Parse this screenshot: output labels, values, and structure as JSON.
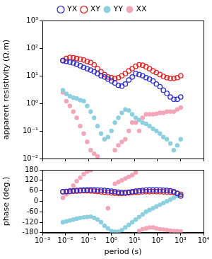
{
  "chart_data": [
    {
      "type": "scatter",
      "y_label": "apparent resistivity (Ω.m)",
      "log": true,
      "grid": false,
      "legend": "top",
      "tick_labels": "y",
      "xlim": [
        0.001,
        10000
      ],
      "xticks": [
        {
          "value": 0.001,
          "label": "10⁻³"
        },
        {
          "value": 0.01,
          "label": "10⁻²"
        },
        {
          "value": 0.1,
          "label": "10⁻¹"
        },
        {
          "value": 1,
          "label": "10⁰"
        },
        {
          "value": 10,
          "label": "10¹"
        },
        {
          "value": 100,
          "label": "10²"
        },
        {
          "value": 1000,
          "label": "10³"
        },
        {
          "value": 10000,
          "label": "10⁴"
        }
      ],
      "ylim": [
        0.01,
        1000
      ],
      "yticks": [
        {
          "value": 0.01,
          "label": "10⁻²"
        },
        {
          "value": 0.1,
          "label": "10⁻¹"
        },
        {
          "value": 1,
          "label": "10⁰"
        },
        {
          "value": 10,
          "label": "10¹"
        },
        {
          "value": 100,
          "label": "10²"
        },
        {
          "value": 1000,
          "label": "10³"
        }
      ],
      "x": [
        0.0078,
        0.011,
        0.0156,
        0.022,
        0.031,
        0.044,
        0.0625,
        0.088,
        0.125,
        0.177,
        0.25,
        0.354,
        0.5,
        0.707,
        1,
        1.41,
        2,
        2.83,
        4,
        5.66,
        8,
        11.3,
        16,
        22.6,
        32,
        45,
        64,
        90,
        128,
        181,
        256,
        362,
        512,
        724,
        1024
      ],
      "series": [
        {
          "name": "YX",
          "color": "#2b2bd0",
          "marker": "circle_open",
          "values": [
            35,
            33,
            31,
            29,
            26,
            23,
            20,
            18,
            16,
            14,
            12,
            10,
            9,
            7.5,
            6.5,
            5.5,
            4.5,
            4.2,
            5,
            7,
            9,
            12,
            11,
            10,
            8.5,
            7.5,
            6.5,
            5,
            4,
            3,
            2.3,
            1.7,
            1.4,
            1.4,
            1.7
          ]
        },
        {
          "name": "XY",
          "color": "#e02020",
          "marker": "circle_open",
          "values": [
            36,
            42,
            46,
            45,
            42,
            40,
            37,
            33,
            30,
            25,
            18,
            14,
            11,
            9,
            8.5,
            8,
            8.5,
            10,
            12,
            15,
            18,
            22,
            25,
            24,
            21,
            18,
            15,
            13,
            11,
            9.5,
            8.5,
            8,
            8,
            8.5,
            10
          ]
        },
        {
          "name": "YY",
          "color": "#8cd0e0",
          "marker": "circle",
          "values": [
            3,
            2.2,
            1.8,
            1.6,
            1.5,
            1.3,
            1.2,
            0.8,
            0.5,
            0.3,
            0.15,
            0.08,
            0.05,
            0.06,
            0.1,
            0.2,
            0.3,
            0.45,
            0.6,
            0.55,
            0.4,
            0.3,
            0.25,
            0.2,
            0.18,
            0.15,
            0.12,
            0.1,
            0.08,
            0.06,
            0.05,
            0.035,
            0.02,
            0.03,
            0.05
          ]
        },
        {
          "name": "XX",
          "color": "#f4a6b8",
          "marker": "circle",
          "values": [
            2.5,
            1.2,
            0.8,
            0.5,
            0.3,
            0.15,
            0.08,
            0.04,
            0.02,
            0.015,
            0.012,
            null,
            null,
            null,
            null,
            0.02,
            0.03,
            0.04,
            0.05,
            0.1,
            0.2,
            0.2,
            0.1,
            0.3,
            0.4,
            0.4,
            0.4,
            0.42,
            0.45,
            0.45,
            0.5,
            0.5,
            0.5,
            0.6,
            0.7
          ]
        }
      ]
    },
    {
      "type": "scatter",
      "x_label": "period (s)",
      "y_label": "phase (deg.)",
      "log": "x",
      "grid": false,
      "xlim": [
        0.001,
        10000
      ],
      "xticks": [
        {
          "value": 0.001,
          "label": "10⁻³"
        },
        {
          "value": 0.01,
          "label": "10⁻²"
        },
        {
          "value": 0.1,
          "label": "10⁻¹"
        },
        {
          "value": 1,
          "label": "10⁰"
        },
        {
          "value": 10,
          "label": "10¹"
        },
        {
          "value": 100,
          "label": "10²"
        },
        {
          "value": 1000,
          "label": "10³"
        },
        {
          "value": 10000,
          "label": "10⁴"
        }
      ],
      "ylim": [
        -180,
        180
      ],
      "yticks": [
        -180,
        -120,
        -60,
        0,
        60,
        120,
        180
      ],
      "x": [
        0.0078,
        0.011,
        0.0156,
        0.022,
        0.031,
        0.044,
        0.0625,
        0.088,
        0.125,
        0.177,
        0.25,
        0.354,
        0.5,
        0.707,
        1,
        1.41,
        2,
        2.83,
        4,
        5.66,
        8,
        11.3,
        16,
        22.6,
        32,
        45,
        64,
        90,
        128,
        181,
        256,
        362,
        512,
        724,
        1024
      ],
      "series": [
        {
          "color": "#2b2bd0",
          "marker": "circle_open",
          "values": [
            55,
            56,
            58,
            60,
            62,
            63,
            64,
            65,
            65,
            65,
            64,
            63,
            62,
            60,
            58,
            55,
            52,
            50,
            50,
            52,
            55,
            58,
            60,
            62,
            64,
            65,
            65,
            65,
            64,
            63,
            62,
            60,
            55,
            45,
            30
          ]
        },
        {
          "color": "#e02020",
          "marker": "circle_open",
          "values": [
            54,
            55,
            56,
            57,
            58,
            59,
            60,
            60,
            59,
            58,
            56,
            54,
            52,
            50,
            48,
            46,
            45,
            45,
            46,
            48,
            50,
            52,
            53,
            54,
            55,
            55,
            56,
            55,
            55,
            54,
            53,
            52,
            50,
            45,
            40
          ]
        },
        {
          "color": "#8cd0e0",
          "marker": "circle",
          "values": [
            -120,
            -115,
            -110,
            -105,
            -100,
            -95,
            -92,
            -90,
            -88,
            -95,
            -105,
            -120,
            -140,
            -155,
            -170,
            -175,
            -175,
            -165,
            -150,
            -135,
            -120,
            -105,
            -90,
            -75,
            -60,
            -50,
            -40,
            -30,
            -20,
            -10,
            0,
            10,
            20,
            30,
            40
          ]
        },
        {
          "color": "#f4a6b8",
          "marker": "circle",
          "values": [
            20,
            40,
            65,
            90,
            115,
            135,
            155,
            170,
            178,
            null,
            null,
            null,
            null,
            -40,
            null,
            100,
            110,
            120,
            130,
            140,
            150,
            165,
            -170,
            -160,
            -155,
            -150,
            -150,
            -155,
            -160,
            -162,
            -165,
            -168,
            -170,
            -170,
            -172
          ]
        }
      ]
    }
  ]
}
